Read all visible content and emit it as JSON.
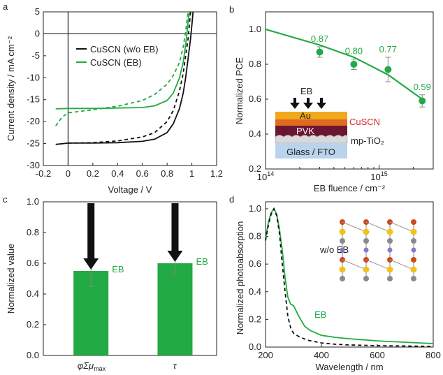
{
  "chart_data": [
    {
      "type": "line",
      "panel": "a",
      "xlabel": "Voltage / V",
      "ylabel": "Current density / mA cm⁻²",
      "xlim": [
        -0.2,
        1.2
      ],
      "ylim": [
        -30,
        5
      ],
      "xticks": [
        "-0.2",
        "0",
        "0.2",
        "0.4",
        "0.6",
        "0.8",
        "1",
        "1.2"
      ],
      "xtick_values": [
        -0.2,
        0,
        0.2,
        0.4,
        0.6,
        0.8,
        1.0,
        1.2
      ],
      "yticks": [
        "-30",
        "-25",
        "-20",
        "-15",
        "-10",
        "-5",
        "0",
        "5"
      ],
      "ytick_values": [
        -30,
        -25,
        -20,
        -15,
        -10,
        -5,
        0,
        5
      ],
      "legend": [
        "CuSCN (w/o EB)",
        "CuSCN (EB)"
      ],
      "legend_position": "top-left",
      "series": [
        {
          "name": "CuSCN (w/o EB)",
          "color": "#111111",
          "style": "solid",
          "points": [
            [
              -0.1,
              -25.2
            ],
            [
              0,
              -24.9
            ],
            [
              0.2,
              -24.9
            ],
            [
              0.4,
              -24.8
            ],
            [
              0.6,
              -24.5
            ],
            [
              0.7,
              -24.0
            ],
            [
              0.8,
              -22.5
            ],
            [
              0.85,
              -20.5
            ],
            [
              0.9,
              -17.0
            ],
            [
              0.93,
              -13.5
            ],
            [
              0.95,
              -10.0
            ],
            [
              0.97,
              -5.5
            ],
            [
              0.99,
              -1.0
            ],
            [
              1.0,
              2.0
            ],
            [
              1.01,
              5.0
            ]
          ]
        },
        {
          "name": "",
          "color": "#111111",
          "style": "dashed",
          "points": [
            [
              0,
              -24.9
            ],
            [
              0.2,
              -24.8
            ],
            [
              0.4,
              -24.4
            ],
            [
              0.6,
              -23.5
            ],
            [
              0.7,
              -22.5
            ],
            [
              0.8,
              -20.0
            ],
            [
              0.85,
              -17.5
            ],
            [
              0.9,
              -13.0
            ],
            [
              0.93,
              -9.0
            ],
            [
              0.95,
              -5.0
            ],
            [
              0.97,
              -1.0
            ],
            [
              0.98,
              2.0
            ],
            [
              0.99,
              5.0
            ]
          ]
        },
        {
          "name": "CuSCN (EB)",
          "color": "#22aa44",
          "style": "solid",
          "points": [
            [
              -0.1,
              -17.1
            ],
            [
              0,
              -17.0
            ],
            [
              0.2,
              -17.0
            ],
            [
              0.4,
              -16.9
            ],
            [
              0.6,
              -16.8
            ],
            [
              0.7,
              -16.4
            ],
            [
              0.8,
              -15.2
            ],
            [
              0.85,
              -13.5
            ],
            [
              0.9,
              -10.0
            ],
            [
              0.93,
              -6.5
            ],
            [
              0.95,
              -2.5
            ],
            [
              0.96,
              0.0
            ],
            [
              0.97,
              3.0
            ],
            [
              0.98,
              5.0
            ]
          ]
        },
        {
          "name": "",
          "color": "#22aa44",
          "style": "dashed",
          "points": [
            [
              -0.1,
              -21.0
            ],
            [
              -0.05,
              -19.0
            ],
            [
              0,
              -18.0
            ],
            [
              0.2,
              -17.3
            ],
            [
              0.4,
              -16.5
            ],
            [
              0.6,
              -15.2
            ],
            [
              0.7,
              -13.8
            ],
            [
              0.8,
              -11.5
            ],
            [
              0.85,
              -9.5
            ],
            [
              0.9,
              -6.5
            ],
            [
              0.93,
              -3.0
            ],
            [
              0.95,
              0.5
            ],
            [
              0.96,
              3.0
            ],
            [
              0.97,
              5.0
            ]
          ]
        }
      ]
    },
    {
      "type": "scatter",
      "panel": "b",
      "xlabel": "EB fluence / cm⁻²",
      "ylabel": "Normalized PCE",
      "xscale": "log",
      "xlim": [
        100000000000000.0,
        3000000000000000.0
      ],
      "ylim": [
        0.2,
        1.1
      ],
      "xtick_labels": [
        {
          "base": "10",
          "exp": "14",
          "value": 100000000000000.0
        },
        {
          "base": "10",
          "exp": "15",
          "value": 1000000000000000.0
        }
      ],
      "yticks": [
        "0.2",
        "0.4",
        "0.6",
        "0.8",
        "1.0"
      ],
      "ytick_values": [
        0.2,
        0.4,
        0.6,
        0.8,
        1.0
      ],
      "color": "#22aa44",
      "points": [
        {
          "x": 300000000000000.0,
          "y": 0.87,
          "err": 0.03,
          "label": "0.87"
        },
        {
          "x": 600000000000000.0,
          "y": 0.8,
          "err": 0.03,
          "label": "0.80"
        },
        {
          "x": 1200000000000000.0,
          "y": 0.77,
          "err": 0.07,
          "label": "0.77"
        },
        {
          "x": 2400000000000000.0,
          "y": 0.59,
          "err": 0.035,
          "label": "0.59"
        }
      ],
      "fit": [
        [
          100000000000000.0,
          1.0
        ],
        [
          300000000000000.0,
          0.91
        ],
        [
          600000000000000.0,
          0.84
        ],
        [
          1200000000000000.0,
          0.74
        ],
        [
          2400000000000000.0,
          0.6
        ]
      ]
    },
    {
      "type": "bar",
      "panel": "c",
      "ylabel": "Normalized value",
      "ylim": [
        0.0,
        1.0
      ],
      "yticks": [
        "0.0",
        "0.2",
        "0.4",
        "0.6",
        "0.8",
        "1.0"
      ],
      "ytick_values": [
        0,
        0.2,
        0.4,
        0.6,
        0.8,
        1.0
      ],
      "categories": [
        "φΣμ",
        "τ"
      ],
      "category_subscripts": [
        "max",
        ""
      ],
      "values": [
        0.55,
        0.6
      ],
      "errors": [
        0.1,
        0.07
      ],
      "bar_labels": [
        "EB",
        "EB"
      ],
      "color": "#22aa44"
    },
    {
      "type": "line",
      "panel": "d",
      "xlabel": "Wavelength / nm",
      "ylabel": "Normalized photoabsorption",
      "xlim": [
        200,
        800
      ],
      "ylim": [
        0.0,
        1.05
      ],
      "xticks": [
        "200",
        "400",
        "600",
        "800"
      ],
      "xtick_values": [
        200,
        400,
        600,
        800
      ],
      "yticks": [
        "0.0",
        "0.2",
        "0.4",
        "0.6",
        "0.8",
        "1.0"
      ],
      "ytick_values": [
        0,
        0.2,
        0.4,
        0.6,
        0.8,
        1.0
      ],
      "series": [
        {
          "name": "EB",
          "color": "#22aa44",
          "style": "solid",
          "points": [
            [
              200,
              0.78
            ],
            [
              210,
              0.9
            ],
            [
              220,
              0.97
            ],
            [
              230,
              1.0
            ],
            [
              240,
              0.96
            ],
            [
              250,
              0.85
            ],
            [
              260,
              0.7
            ],
            [
              270,
              0.5
            ],
            [
              280,
              0.36
            ],
            [
              290,
              0.31
            ],
            [
              300,
              0.3
            ],
            [
              320,
              0.22
            ],
            [
              340,
              0.15
            ],
            [
              360,
              0.12
            ],
            [
              400,
              0.085
            ],
            [
              450,
              0.07
            ],
            [
              500,
              0.06
            ],
            [
              600,
              0.045
            ],
            [
              700,
              0.035
            ],
            [
              800,
              0.025
            ]
          ]
        },
        {
          "name": "w/o EB",
          "color": "#111111",
          "style": "dashed",
          "points": [
            [
              200,
              0.77
            ],
            [
              210,
              0.88
            ],
            [
              220,
              0.96
            ],
            [
              230,
              1.0
            ],
            [
              240,
              0.95
            ],
            [
              250,
              0.82
            ],
            [
              260,
              0.6
            ],
            [
              270,
              0.4
            ],
            [
              280,
              0.22
            ],
            [
              290,
              0.14
            ],
            [
              300,
              0.1
            ],
            [
              320,
              0.075
            ],
            [
              350,
              0.05
            ],
            [
              400,
              0.03
            ],
            [
              450,
              0.02
            ],
            [
              500,
              0.015
            ],
            [
              600,
              0.01
            ],
            [
              800,
              0.005
            ]
          ]
        }
      ]
    }
  ],
  "panels": {
    "a": {
      "letter": "a"
    },
    "b": {
      "letter": "b",
      "inset": {
        "beam_label": "EB",
        "layers": [
          "Au",
          "CuSCN",
          "PVK",
          "mp-TiO₂",
          "Glass / FTO"
        ]
      }
    },
    "c": {
      "letter": "c"
    },
    "d": {
      "letter": "d"
    }
  },
  "colors": {
    "green": "#22aa44",
    "black": "#111111",
    "red": "#d62828",
    "gold": "#f0a81c",
    "orange": "#e7801f",
    "pvk": "#6a1532",
    "glass": "#b9d4ec"
  }
}
